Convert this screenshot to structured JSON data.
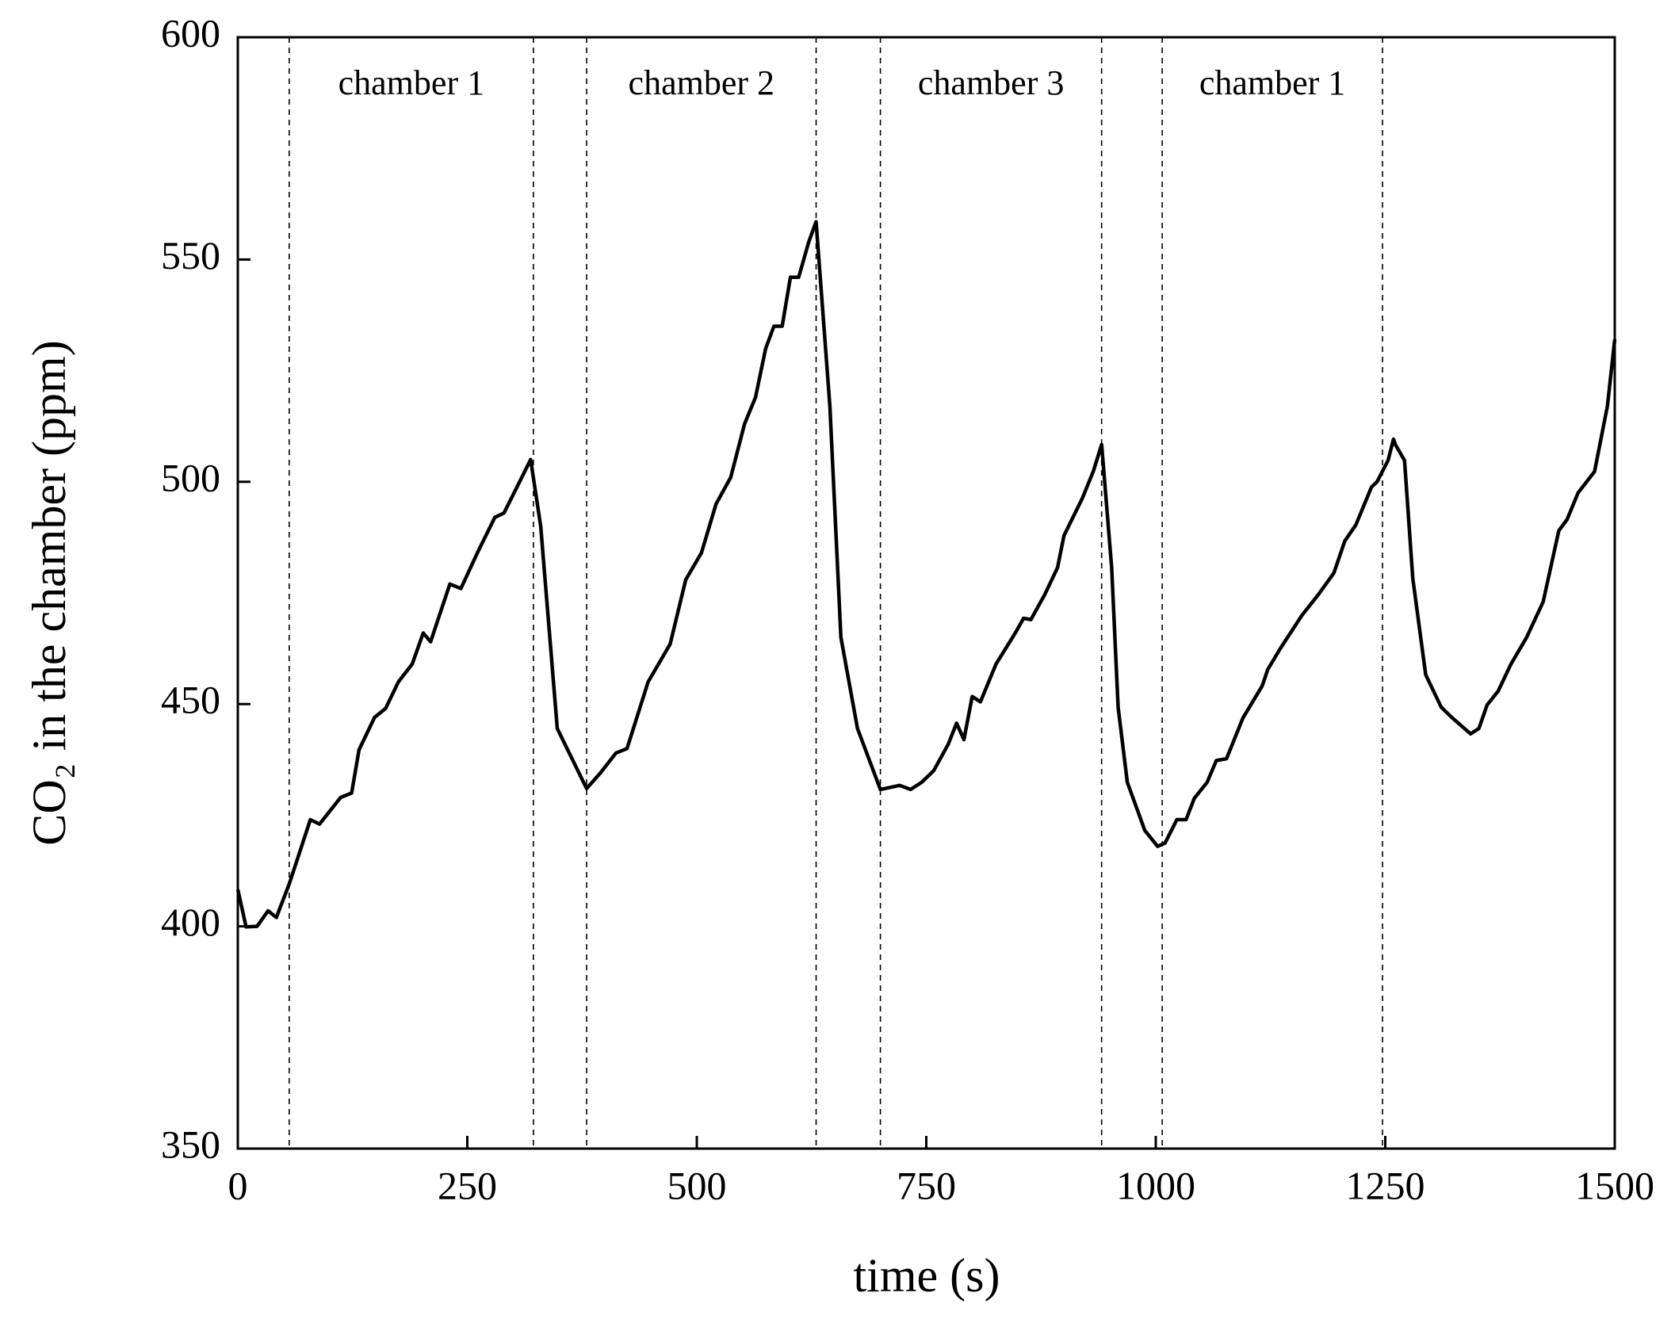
{
  "chart_data": {
    "type": "line",
    "xlabel": "time (s)",
    "ylabel": "CO₂ in the chamber (ppm)",
    "xlim": [
      0,
      1500
    ],
    "xticks": [
      0,
      250,
      500,
      750,
      1000,
      1250,
      1500
    ],
    "ylim": [
      350,
      600
    ],
    "yticks": [
      350,
      400,
      450,
      500,
      550,
      600
    ],
    "color": "#000000",
    "periods": [
      {
        "label": "chamber 1",
        "start": 56,
        "end": 322
      },
      {
        "label": "chamber 2",
        "start": 380,
        "end": 630
      },
      {
        "label": "chamber 3",
        "start": 700,
        "end": 941
      },
      {
        "label": "chamber 1",
        "start": 1007,
        "end": 1247
      }
    ],
    "x": [
      0,
      9,
      21,
      33,
      42,
      56,
      79,
      89,
      112,
      124,
      132,
      149,
      161,
      175,
      190,
      202,
      210,
      231,
      243,
      261,
      280,
      290,
      307,
      319,
      330,
      348,
      380,
      395,
      412,
      424,
      447,
      471,
      488,
      505,
      521,
      537,
      552,
      564,
      575,
      584,
      593,
      602,
      611,
      622,
      630,
      645,
      657,
      675,
      700,
      721,
      733,
      745,
      758,
      774,
      783,
      791,
      800,
      809,
      826,
      847,
      856,
      864,
      879,
      893,
      900,
      920,
      932,
      941,
      952,
      959,
      969,
      988,
      1002,
      1010,
      1023,
      1033,
      1042,
      1056,
      1066,
      1077,
      1095,
      1116,
      1122,
      1136,
      1159,
      1177,
      1194,
      1206,
      1218,
      1235,
      1241,
      1253,
      1259,
      1261,
      1271,
      1280,
      1294,
      1311,
      1323,
      1343,
      1352,
      1361,
      1373,
      1387,
      1404,
      1422,
      1439,
      1448,
      1460,
      1478,
      1492,
      1500
    ],
    "values": [
      408.3,
      399.9,
      400,
      403.5,
      402,
      409.5,
      424,
      423,
      429,
      430,
      439.7,
      447,
      449,
      455,
      459,
      466,
      464,
      477,
      476,
      484,
      492,
      493,
      500,
      505,
      490,
      444.5,
      431,
      434.5,
      439,
      440,
      455,
      463.5,
      478,
      484,
      495,
      501,
      513,
      519,
      530,
      535,
      535,
      546,
      546,
      554,
      558.5,
      517,
      465,
      444.5,
      430.8,
      431.7,
      430.8,
      432.4,
      435,
      441,
      445.7,
      442,
      451.7,
      450.5,
      459,
      466,
      469.3,
      469,
      474.6,
      480.7,
      487.9,
      496.3,
      502.4,
      508.4,
      480.6,
      449.3,
      432.4,
      421.6,
      418,
      418.7,
      424,
      424,
      428.8,
      432.4,
      437.3,
      437.7,
      446.9,
      454.1,
      457.8,
      462.6,
      469.9,
      474.6,
      479.5,
      486.7,
      490.3,
      498.8,
      500,
      504.8,
      509.6,
      508.4,
      504.8,
      478.3,
      456.6,
      449.3,
      446.9,
      443.3,
      444.5,
      449.8,
      452.9,
      459,
      465,
      473,
      489,
      491.5,
      497.5,
      502.3,
      517,
      532
    ]
  }
}
